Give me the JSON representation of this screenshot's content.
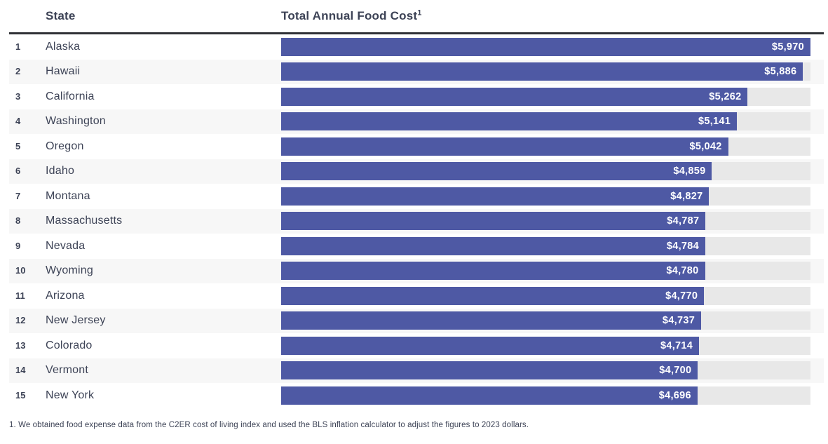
{
  "header": {
    "state_label": "State",
    "cost_label": "Total Annual Food Cost",
    "footnote_marker": "1"
  },
  "chart_data": {
    "type": "bar",
    "orientation": "horizontal",
    "title": "Total Annual Food Cost",
    "categories": [
      "Alaska",
      "Hawaii",
      "California",
      "Washington",
      "Oregon",
      "Idaho",
      "Montana",
      "Massachusetts",
      "Nevada",
      "Wyoming",
      "Arizona",
      "New Jersey",
      "Colorado",
      "Vermont",
      "New York"
    ],
    "ranks": [
      1,
      2,
      3,
      4,
      5,
      6,
      7,
      8,
      9,
      10,
      11,
      12,
      13,
      14,
      15
    ],
    "values": [
      5970,
      5886,
      5262,
      5141,
      5042,
      4859,
      4827,
      4787,
      4784,
      4780,
      4770,
      4737,
      4714,
      4700,
      4696
    ],
    "value_labels": [
      "$5,970",
      "$5,886",
      "$5,262",
      "$5,141",
      "$5,042",
      "$4,859",
      "$4,827",
      "$4,787",
      "$4,784",
      "$4,780",
      "$4,770",
      "$4,737",
      "$4,714",
      "$4,700",
      "$4,696"
    ],
    "xlim": [
      0,
      5970
    ],
    "grid": false,
    "legend": false
  },
  "footnote": "1. We obtained food expense data from the C2ER cost of living index and used the BLS inflation calculator to adjust the figures to 2023 dollars.",
  "colors": {
    "bar": "#4e59a4",
    "track": "#e8e8e8",
    "text": "#3d4356",
    "value_text": "#ffffff",
    "header_rule": "#2f3136",
    "row_stripe": "#f7f7f7"
  }
}
